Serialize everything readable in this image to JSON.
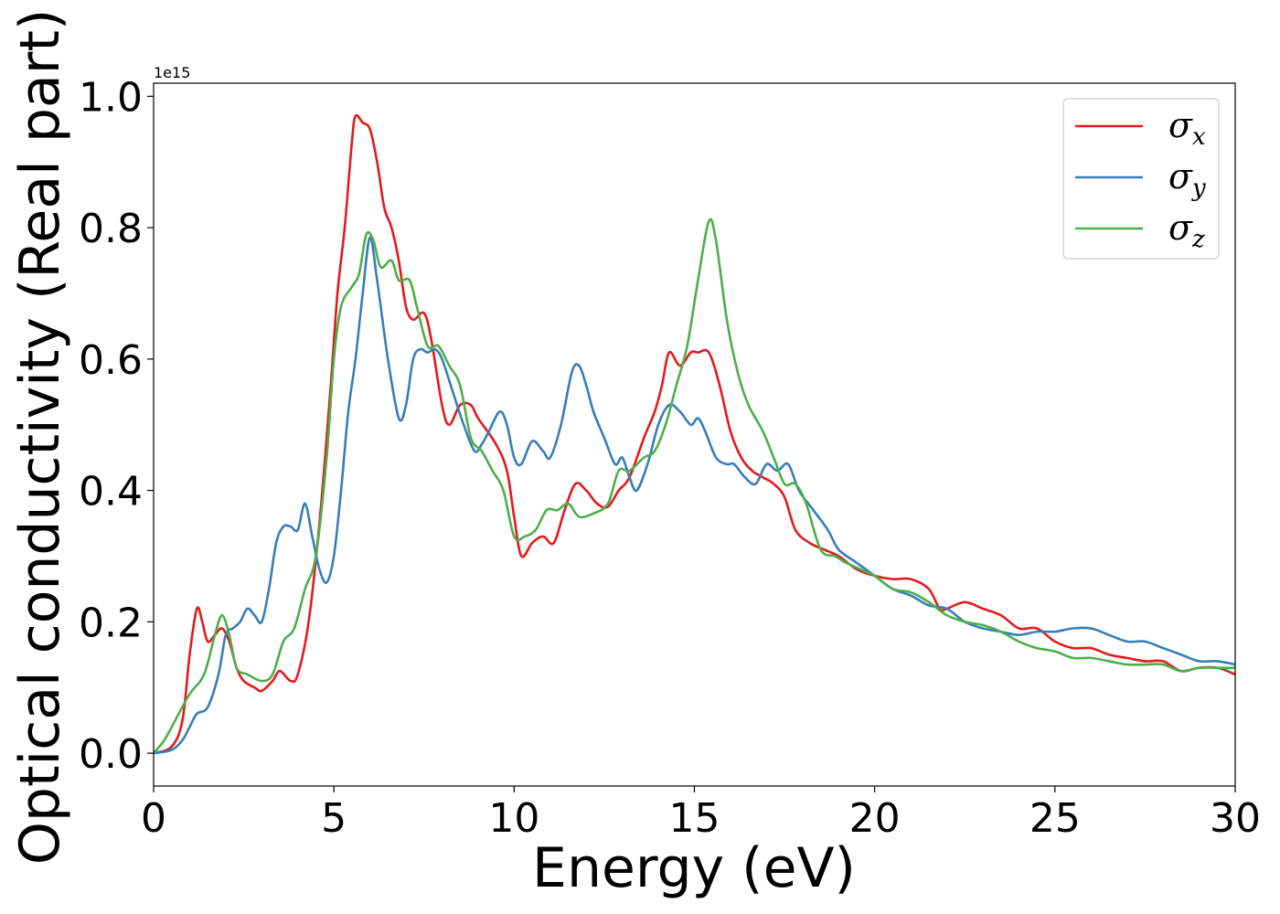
{
  "chart_data": {
    "type": "line",
    "xlabel": "Energy (eV)",
    "ylabel": "Optical conductivity (Real part)",
    "y_offset_label": "1e15",
    "xlim": [
      0,
      30
    ],
    "ylim": [
      -0.05,
      1.02
    ],
    "x_ticks": [
      0,
      5,
      10,
      15,
      20,
      25,
      30
    ],
    "x_tick_labels": [
      "0",
      "5",
      "10",
      "15",
      "20",
      "25",
      "30"
    ],
    "y_ticks": [
      0.0,
      0.2,
      0.4,
      0.6,
      0.8,
      1.0
    ],
    "y_tick_labels": [
      "0.0",
      "0.2",
      "0.4",
      "0.6",
      "0.8",
      "1.0"
    ],
    "grid": false,
    "legend_position": "top-right",
    "series": [
      {
        "name": "σx",
        "symbol": "σ",
        "subscript": "x",
        "color": "#e41a1c",
        "points": [
          [
            0,
            0
          ],
          [
            0.5,
            0.01
          ],
          [
            0.8,
            0.05
          ],
          [
            1.0,
            0.15
          ],
          [
            1.2,
            0.22
          ],
          [
            1.35,
            0.2
          ],
          [
            1.5,
            0.17
          ],
          [
            1.7,
            0.18
          ],
          [
            1.9,
            0.19
          ],
          [
            2.1,
            0.17
          ],
          [
            2.3,
            0.13
          ],
          [
            2.5,
            0.11
          ],
          [
            2.8,
            0.1
          ],
          [
            3.0,
            0.095
          ],
          [
            3.3,
            0.11
          ],
          [
            3.5,
            0.125
          ],
          [
            3.8,
            0.11
          ],
          [
            4.0,
            0.12
          ],
          [
            4.3,
            0.2
          ],
          [
            4.6,
            0.35
          ],
          [
            4.9,
            0.55
          ],
          [
            5.1,
            0.7
          ],
          [
            5.3,
            0.8
          ],
          [
            5.5,
            0.93
          ],
          [
            5.6,
            0.97
          ],
          [
            5.8,
            0.96
          ],
          [
            6.0,
            0.95
          ],
          [
            6.2,
            0.9
          ],
          [
            6.4,
            0.83
          ],
          [
            6.6,
            0.8
          ],
          [
            6.8,
            0.75
          ],
          [
            7.0,
            0.68
          ],
          [
            7.2,
            0.66
          ],
          [
            7.5,
            0.67
          ],
          [
            7.7,
            0.63
          ],
          [
            8.0,
            0.53
          ],
          [
            8.2,
            0.5
          ],
          [
            8.5,
            0.53
          ],
          [
            8.8,
            0.53
          ],
          [
            9.0,
            0.51
          ],
          [
            9.5,
            0.47
          ],
          [
            9.8,
            0.43
          ],
          [
            10.0,
            0.36
          ],
          [
            10.2,
            0.3
          ],
          [
            10.5,
            0.32
          ],
          [
            10.8,
            0.33
          ],
          [
            11.1,
            0.32
          ],
          [
            11.4,
            0.37
          ],
          [
            11.7,
            0.41
          ],
          [
            12.0,
            0.4
          ],
          [
            12.3,
            0.38
          ],
          [
            12.6,
            0.375
          ],
          [
            12.9,
            0.4
          ],
          [
            13.2,
            0.42
          ],
          [
            13.6,
            0.48
          ],
          [
            13.9,
            0.52
          ],
          [
            14.1,
            0.56
          ],
          [
            14.3,
            0.61
          ],
          [
            14.6,
            0.59
          ],
          [
            14.9,
            0.61
          ],
          [
            15.1,
            0.61
          ],
          [
            15.4,
            0.61
          ],
          [
            15.7,
            0.56
          ],
          [
            16.0,
            0.49
          ],
          [
            16.3,
            0.45
          ],
          [
            16.6,
            0.43
          ],
          [
            16.9,
            0.42
          ],
          [
            17.2,
            0.41
          ],
          [
            17.5,
            0.39
          ],
          [
            17.8,
            0.34
          ],
          [
            18.2,
            0.32
          ],
          [
            18.6,
            0.31
          ],
          [
            19.0,
            0.3
          ],
          [
            19.5,
            0.28
          ],
          [
            20.0,
            0.27
          ],
          [
            20.5,
            0.265
          ],
          [
            21.0,
            0.265
          ],
          [
            21.5,
            0.25
          ],
          [
            21.8,
            0.22
          ],
          [
            22.0,
            0.22
          ],
          [
            22.5,
            0.23
          ],
          [
            23.0,
            0.22
          ],
          [
            23.5,
            0.21
          ],
          [
            24.0,
            0.19
          ],
          [
            24.5,
            0.19
          ],
          [
            25.0,
            0.17
          ],
          [
            25.5,
            0.16
          ],
          [
            26.0,
            0.16
          ],
          [
            26.5,
            0.15
          ],
          [
            27.0,
            0.145
          ],
          [
            27.5,
            0.14
          ],
          [
            28.0,
            0.14
          ],
          [
            28.5,
            0.125
          ],
          [
            29.0,
            0.13
          ],
          [
            29.5,
            0.13
          ],
          [
            30.0,
            0.12
          ]
        ]
      },
      {
        "name": "σy",
        "symbol": "σ",
        "subscript": "y",
        "color": "#377eb8",
        "points": [
          [
            0,
            0
          ],
          [
            0.5,
            0.005
          ],
          [
            0.8,
            0.02
          ],
          [
            1.0,
            0.04
          ],
          [
            1.2,
            0.06
          ],
          [
            1.5,
            0.07
          ],
          [
            1.8,
            0.12
          ],
          [
            2.0,
            0.18
          ],
          [
            2.2,
            0.19
          ],
          [
            2.4,
            0.2
          ],
          [
            2.6,
            0.22
          ],
          [
            2.8,
            0.21
          ],
          [
            3.0,
            0.2
          ],
          [
            3.2,
            0.25
          ],
          [
            3.4,
            0.32
          ],
          [
            3.6,
            0.345
          ],
          [
            3.8,
            0.345
          ],
          [
            4.0,
            0.34
          ],
          [
            4.2,
            0.38
          ],
          [
            4.4,
            0.33
          ],
          [
            4.6,
            0.28
          ],
          [
            4.8,
            0.26
          ],
          [
            5.0,
            0.3
          ],
          [
            5.2,
            0.4
          ],
          [
            5.4,
            0.52
          ],
          [
            5.6,
            0.6
          ],
          [
            5.8,
            0.7
          ],
          [
            6.0,
            0.785
          ],
          [
            6.2,
            0.72
          ],
          [
            6.5,
            0.6
          ],
          [
            6.8,
            0.51
          ],
          [
            7.0,
            0.53
          ],
          [
            7.2,
            0.6
          ],
          [
            7.4,
            0.615
          ],
          [
            7.6,
            0.61
          ],
          [
            7.8,
            0.615
          ],
          [
            8.0,
            0.6
          ],
          [
            8.3,
            0.55
          ],
          [
            8.6,
            0.5
          ],
          [
            8.9,
            0.46
          ],
          [
            9.1,
            0.47
          ],
          [
            9.3,
            0.49
          ],
          [
            9.6,
            0.52
          ],
          [
            9.8,
            0.5
          ],
          [
            10.0,
            0.45
          ],
          [
            10.2,
            0.44
          ],
          [
            10.5,
            0.475
          ],
          [
            10.8,
            0.46
          ],
          [
            11.0,
            0.45
          ],
          [
            11.3,
            0.5
          ],
          [
            11.6,
            0.58
          ],
          [
            11.8,
            0.59
          ],
          [
            12.0,
            0.56
          ],
          [
            12.2,
            0.52
          ],
          [
            12.5,
            0.48
          ],
          [
            12.8,
            0.44
          ],
          [
            13.0,
            0.45
          ],
          [
            13.2,
            0.42
          ],
          [
            13.4,
            0.4
          ],
          [
            13.7,
            0.44
          ],
          [
            14.0,
            0.5
          ],
          [
            14.3,
            0.53
          ],
          [
            14.6,
            0.52
          ],
          [
            14.9,
            0.5
          ],
          [
            15.1,
            0.51
          ],
          [
            15.3,
            0.49
          ],
          [
            15.6,
            0.45
          ],
          [
            15.9,
            0.44
          ],
          [
            16.1,
            0.44
          ],
          [
            16.4,
            0.42
          ],
          [
            16.7,
            0.41
          ],
          [
            17.0,
            0.44
          ],
          [
            17.3,
            0.43
          ],
          [
            17.6,
            0.44
          ],
          [
            17.9,
            0.4
          ],
          [
            18.3,
            0.37
          ],
          [
            18.7,
            0.34
          ],
          [
            19.0,
            0.31
          ],
          [
            19.5,
            0.29
          ],
          [
            20.0,
            0.27
          ],
          [
            20.5,
            0.25
          ],
          [
            21.0,
            0.24
          ],
          [
            21.5,
            0.225
          ],
          [
            22.0,
            0.22
          ],
          [
            22.5,
            0.2
          ],
          [
            23.0,
            0.19
          ],
          [
            23.5,
            0.185
          ],
          [
            24.0,
            0.18
          ],
          [
            24.5,
            0.185
          ],
          [
            25.0,
            0.185
          ],
          [
            25.5,
            0.19
          ],
          [
            26.0,
            0.19
          ],
          [
            26.5,
            0.18
          ],
          [
            27.0,
            0.17
          ],
          [
            27.5,
            0.17
          ],
          [
            28.0,
            0.16
          ],
          [
            28.5,
            0.15
          ],
          [
            29.0,
            0.14
          ],
          [
            29.5,
            0.14
          ],
          [
            30.0,
            0.135
          ]
        ]
      },
      {
        "name": "σz",
        "symbol": "σ",
        "subscript": "z",
        "color": "#4daf4a",
        "points": [
          [
            0,
            0
          ],
          [
            0.3,
            0.02
          ],
          [
            0.6,
            0.05
          ],
          [
            1.0,
            0.09
          ],
          [
            1.4,
            0.12
          ],
          [
            1.7,
            0.18
          ],
          [
            1.9,
            0.21
          ],
          [
            2.1,
            0.18
          ],
          [
            2.3,
            0.13
          ],
          [
            2.6,
            0.12
          ],
          [
            3.0,
            0.11
          ],
          [
            3.3,
            0.12
          ],
          [
            3.6,
            0.17
          ],
          [
            3.9,
            0.19
          ],
          [
            4.2,
            0.25
          ],
          [
            4.5,
            0.3
          ],
          [
            4.8,
            0.45
          ],
          [
            5.0,
            0.6
          ],
          [
            5.2,
            0.68
          ],
          [
            5.5,
            0.71
          ],
          [
            5.7,
            0.73
          ],
          [
            5.9,
            0.79
          ],
          [
            6.1,
            0.78
          ],
          [
            6.3,
            0.74
          ],
          [
            6.6,
            0.75
          ],
          [
            6.8,
            0.72
          ],
          [
            7.1,
            0.72
          ],
          [
            7.3,
            0.68
          ],
          [
            7.6,
            0.62
          ],
          [
            7.9,
            0.62
          ],
          [
            8.2,
            0.59
          ],
          [
            8.5,
            0.56
          ],
          [
            8.8,
            0.48
          ],
          [
            9.1,
            0.46
          ],
          [
            9.4,
            0.43
          ],
          [
            9.7,
            0.4
          ],
          [
            10.0,
            0.33
          ],
          [
            10.3,
            0.33
          ],
          [
            10.6,
            0.34
          ],
          [
            10.9,
            0.37
          ],
          [
            11.2,
            0.37
          ],
          [
            11.5,
            0.38
          ],
          [
            11.8,
            0.36
          ],
          [
            12.2,
            0.365
          ],
          [
            12.6,
            0.38
          ],
          [
            12.9,
            0.43
          ],
          [
            13.2,
            0.43
          ],
          [
            13.6,
            0.45
          ],
          [
            13.9,
            0.46
          ],
          [
            14.2,
            0.5
          ],
          [
            14.5,
            0.56
          ],
          [
            14.8,
            0.62
          ],
          [
            15.1,
            0.72
          ],
          [
            15.4,
            0.81
          ],
          [
            15.6,
            0.78
          ],
          [
            15.9,
            0.66
          ],
          [
            16.2,
            0.58
          ],
          [
            16.5,
            0.53
          ],
          [
            16.9,
            0.49
          ],
          [
            17.2,
            0.45
          ],
          [
            17.5,
            0.41
          ],
          [
            17.8,
            0.41
          ],
          [
            18.1,
            0.38
          ],
          [
            18.5,
            0.31
          ],
          [
            18.9,
            0.3
          ],
          [
            19.2,
            0.29
          ],
          [
            19.6,
            0.28
          ],
          [
            20.0,
            0.27
          ],
          [
            20.5,
            0.25
          ],
          [
            21.0,
            0.245
          ],
          [
            21.5,
            0.23
          ],
          [
            22.0,
            0.21
          ],
          [
            22.5,
            0.2
          ],
          [
            23.0,
            0.195
          ],
          [
            23.5,
            0.185
          ],
          [
            24.0,
            0.17
          ],
          [
            24.5,
            0.16
          ],
          [
            25.0,
            0.155
          ],
          [
            25.5,
            0.145
          ],
          [
            26.0,
            0.145
          ],
          [
            26.5,
            0.14
          ],
          [
            27.0,
            0.135
          ],
          [
            27.5,
            0.135
          ],
          [
            28.0,
            0.135
          ],
          [
            28.5,
            0.125
          ],
          [
            29.0,
            0.13
          ],
          [
            29.5,
            0.13
          ],
          [
            30.0,
            0.13
          ]
        ]
      }
    ]
  }
}
